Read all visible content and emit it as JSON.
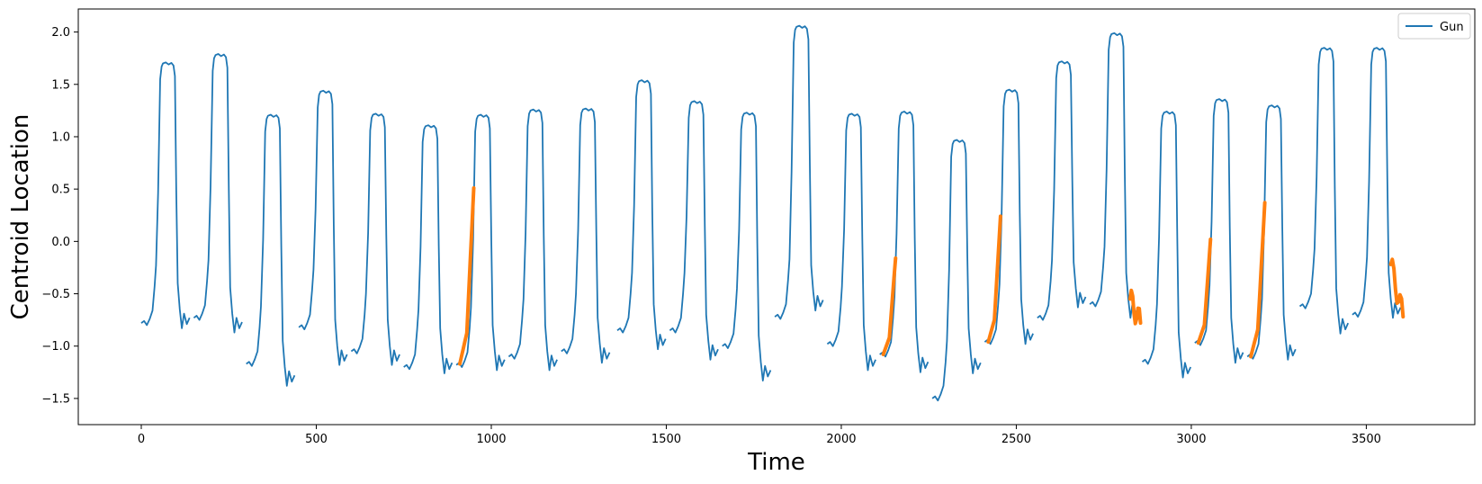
{
  "chart_data": {
    "type": "line",
    "title": "",
    "xlabel": "Time",
    "ylabel": "Centroid Location",
    "xlim": [
      -180,
      3810
    ],
    "ylim": [
      -1.75,
      2.22
    ],
    "x_ticks": [
      0,
      500,
      1000,
      1500,
      2000,
      2500,
      3000,
      3500
    ],
    "y_ticks": [
      -1.5,
      -1.0,
      -0.5,
      0.0,
      0.5,
      1.0,
      1.5,
      2.0
    ],
    "y_tick_labels": [
      "−1.5",
      "−1.0",
      "−0.5",
      "0.0",
      "0.5",
      "1.0",
      "1.5",
      "2.0"
    ],
    "grid": false,
    "legend_position": "top-right",
    "colors": {
      "series": "#1f77b4",
      "highlight": "#ff7f0e"
    },
    "series": [
      {
        "name": "Gun",
        "segments": [
          {
            "start": 0,
            "pre": -0.78,
            "plateau": 1.7,
            "post": -0.75
          },
          {
            "start": 150,
            "pre": -0.73,
            "plateau": 1.78,
            "post": -0.79
          },
          {
            "start": 300,
            "pre": -1.17,
            "plateau": 1.2,
            "post": -1.3
          },
          {
            "start": 450,
            "pre": -0.82,
            "plateau": 1.43,
            "post": -1.1
          },
          {
            "start": 600,
            "pre": -1.05,
            "plateau": 1.21,
            "post": -1.1
          },
          {
            "start": 750,
            "pre": -1.2,
            "plateau": 1.1,
            "post": -1.18
          },
          {
            "start": 900,
            "pre": -1.18,
            "plateau": 1.2,
            "post": -1.15
          },
          {
            "start": 1050,
            "pre": -1.1,
            "plateau": 1.25,
            "post": -1.15
          },
          {
            "start": 1200,
            "pre": -1.05,
            "plateau": 1.26,
            "post": -1.08
          },
          {
            "start": 1360,
            "pre": -0.85,
            "plateau": 1.53,
            "post": -0.95
          },
          {
            "start": 1510,
            "pre": -0.85,
            "plateau": 1.33,
            "post": -1.05
          },
          {
            "start": 1660,
            "pre": -1.0,
            "plateau": 1.22,
            "post": -1.25
          },
          {
            "start": 1810,
            "pre": -0.72,
            "plateau": 2.05,
            "post": -0.58
          },
          {
            "start": 1960,
            "pre": -0.98,
            "plateau": 1.21,
            "post": -1.15
          },
          {
            "start": 2110,
            "pre": -1.08,
            "plateau": 1.23,
            "post": -1.17
          },
          {
            "start": 2260,
            "pre": -1.5,
            "plateau": 0.96,
            "post": -1.18
          },
          {
            "start": 2410,
            "pre": -0.96,
            "plateau": 1.44,
            "post": -0.9
          },
          {
            "start": 2560,
            "pre": -0.73,
            "plateau": 1.71,
            "post": -0.55
          },
          {
            "start": 2710,
            "pre": -0.6,
            "plateau": 1.98,
            "post": -0.65
          },
          {
            "start": 2860,
            "pre": -1.15,
            "plateau": 1.23,
            "post": -1.22
          },
          {
            "start": 3010,
            "pre": -0.97,
            "plateau": 1.35,
            "post": -1.08
          },
          {
            "start": 3160,
            "pre": -1.1,
            "plateau": 1.29,
            "post": -1.05
          },
          {
            "start": 3310,
            "pre": -0.62,
            "plateau": 1.84,
            "post": -0.8
          },
          {
            "start": 3460,
            "pre": -0.7,
            "plateau": 1.84,
            "post": -0.65
          }
        ]
      }
    ],
    "highlights": [
      {
        "x_start": 910,
        "x_end": 950,
        "y_start": -1.17,
        "y_end": 0.51
      },
      {
        "x_start": 2120,
        "x_end": 2155,
        "y_start": -1.08,
        "y_end": -0.16
      },
      {
        "x_start": 2420,
        "x_end": 2455,
        "y_start": -0.96,
        "y_end": 0.24
      },
      {
        "x_start": 2825,
        "x_end": 2855,
        "y_start": -0.55,
        "y_end": -0.78,
        "wiggle": true
      },
      {
        "x_start": 3020,
        "x_end": 3055,
        "y_start": -0.97,
        "y_end": 0.02
      },
      {
        "x_start": 3170,
        "x_end": 3210,
        "y_start": -1.1,
        "y_end": 0.37
      },
      {
        "x_start": 3570,
        "x_end": 3605,
        "y_start": -0.22,
        "y_end": -0.72,
        "wiggle": true
      }
    ]
  }
}
